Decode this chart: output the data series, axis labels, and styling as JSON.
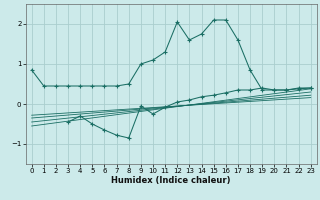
{
  "xlabel": "Humidex (Indice chaleur)",
  "ylabel": "",
  "bg_color": "#cceaea",
  "grid_color": "#aacece",
  "line_color": "#1a6e64",
  "xlim": [
    -0.5,
    23.5
  ],
  "ylim": [
    -1.5,
    2.5
  ],
  "yticks": [
    -1,
    0,
    1,
    2
  ],
  "xticks": [
    0,
    1,
    2,
    3,
    4,
    5,
    6,
    7,
    8,
    9,
    10,
    11,
    12,
    13,
    14,
    15,
    16,
    17,
    18,
    19,
    20,
    21,
    22,
    23
  ],
  "series1": [
    [
      0,
      0.85
    ],
    [
      1,
      0.45
    ],
    [
      2,
      0.45
    ],
    [
      3,
      0.45
    ],
    [
      4,
      0.45
    ],
    [
      5,
      0.45
    ],
    [
      6,
      0.45
    ],
    [
      7,
      0.45
    ],
    [
      8,
      0.5
    ],
    [
      9,
      1.0
    ],
    [
      10,
      1.1
    ],
    [
      11,
      1.3
    ],
    [
      12,
      2.05
    ],
    [
      13,
      1.6
    ],
    [
      14,
      1.75
    ],
    [
      15,
      2.1
    ],
    [
      16,
      2.1
    ],
    [
      17,
      1.6
    ],
    [
      18,
      0.85
    ],
    [
      19,
      0.35
    ],
    [
      20,
      0.35
    ],
    [
      21,
      0.35
    ],
    [
      22,
      0.4
    ],
    [
      23,
      0.4
    ]
  ],
  "series2": [
    [
      3,
      -0.45
    ],
    [
      4,
      -0.3
    ],
    [
      5,
      -0.5
    ],
    [
      6,
      -0.65
    ],
    [
      7,
      -0.78
    ],
    [
      8,
      -0.85
    ],
    [
      9,
      -0.05
    ],
    [
      10,
      -0.25
    ],
    [
      11,
      -0.08
    ],
    [
      12,
      0.05
    ],
    [
      13,
      0.1
    ],
    [
      14,
      0.18
    ],
    [
      15,
      0.22
    ],
    [
      16,
      0.28
    ],
    [
      17,
      0.35
    ],
    [
      18,
      0.35
    ],
    [
      19,
      0.4
    ],
    [
      20,
      0.35
    ],
    [
      21,
      0.35
    ],
    [
      22,
      0.38
    ],
    [
      23,
      0.4
    ]
  ],
  "reg_lines": [
    {
      "x0": 0,
      "x1": 23,
      "y0": -0.55,
      "y1": 0.38
    },
    {
      "x0": 0,
      "x1": 23,
      "y0": -0.45,
      "y1": 0.3
    },
    {
      "x0": 0,
      "x1": 23,
      "y0": -0.35,
      "y1": 0.22
    },
    {
      "x0": 0,
      "x1": 23,
      "y0": -0.28,
      "y1": 0.16
    }
  ]
}
